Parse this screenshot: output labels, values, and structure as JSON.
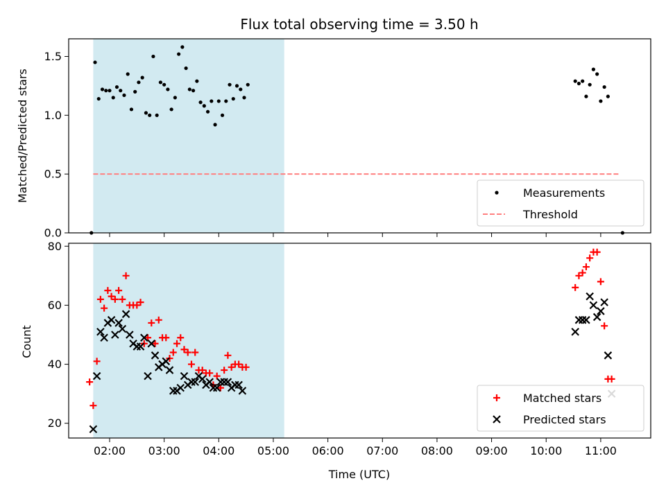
{
  "chart_data": [
    {
      "type": "scatter",
      "title": "Flux total observing time = 3.50 h",
      "ylabel": "Matched/Predicted stars",
      "xlabel": "",
      "x_axis": "time (UTC)",
      "xlim": [
        "01:15",
        "11:55"
      ],
      "ylim": [
        0,
        1.65
      ],
      "yticks": [
        0.0,
        0.5,
        1.0,
        1.5
      ],
      "ytick_labels": [
        "0.0",
        "0.5",
        "1.0",
        "1.5"
      ],
      "shaded_region": {
        "x": [
          "01:42",
          "05:12"
        ],
        "color": "#add8e6"
      },
      "threshold": {
        "name": "Threshold",
        "y": 0.5,
        "x": [
          "01:42",
          "11:20"
        ],
        "color": "#ff7f7f"
      },
      "legend": {
        "location": "lower right",
        "entries": [
          "Measurements",
          "Threshold"
        ]
      },
      "series": [
        {
          "name": "Measurements",
          "marker": "dot",
          "color": "#000000",
          "points": [
            [
              "01:40",
              0.0
            ],
            [
              "01:44",
              1.45
            ],
            [
              "01:48",
              1.14
            ],
            [
              "01:52",
              1.22
            ],
            [
              "01:56",
              1.21
            ],
            [
              "02:00",
              1.21
            ],
            [
              "02:04",
              1.15
            ],
            [
              "02:08",
              1.24
            ],
            [
              "02:12",
              1.21
            ],
            [
              "02:16",
              1.17
            ],
            [
              "02:20",
              1.35
            ],
            [
              "02:24",
              1.05
            ],
            [
              "02:28",
              1.2
            ],
            [
              "02:32",
              1.28
            ],
            [
              "02:36",
              1.32
            ],
            [
              "02:40",
              1.02
            ],
            [
              "02:44",
              1.0
            ],
            [
              "02:48",
              1.5
            ],
            [
              "02:52",
              1.0
            ],
            [
              "02:56",
              1.28
            ],
            [
              "03:00",
              1.26
            ],
            [
              "03:04",
              1.22
            ],
            [
              "03:08",
              1.05
            ],
            [
              "03:12",
              1.15
            ],
            [
              "03:16",
              1.52
            ],
            [
              "03:20",
              1.58
            ],
            [
              "03:24",
              1.4
            ],
            [
              "03:28",
              1.22
            ],
            [
              "03:32",
              1.21
            ],
            [
              "03:36",
              1.29
            ],
            [
              "03:40",
              1.11
            ],
            [
              "03:44",
              1.08
            ],
            [
              "03:48",
              1.03
            ],
            [
              "03:52",
              1.12
            ],
            [
              "03:56",
              0.92
            ],
            [
              "04:00",
              1.12
            ],
            [
              "04:04",
              1.0
            ],
            [
              "04:08",
              1.12
            ],
            [
              "04:12",
              1.26
            ],
            [
              "04:16",
              1.14
            ],
            [
              "04:20",
              1.25
            ],
            [
              "04:24",
              1.22
            ],
            [
              "04:28",
              1.15
            ],
            [
              "04:32",
              1.26
            ],
            [
              "10:32",
              1.29
            ],
            [
              "10:36",
              1.27
            ],
            [
              "10:40",
              1.29
            ],
            [
              "10:44",
              1.16
            ],
            [
              "10:48",
              1.26
            ],
            [
              "10:52",
              1.39
            ],
            [
              "10:56",
              1.35
            ],
            [
              "11:00",
              1.12
            ],
            [
              "11:04",
              1.24
            ],
            [
              "11:08",
              1.16
            ],
            [
              "11:24",
              0.0
            ]
          ]
        }
      ]
    },
    {
      "type": "scatter",
      "title": "",
      "ylabel": "Count",
      "xlabel": "Time (UTC)",
      "xlim": [
        "01:15",
        "11:55"
      ],
      "xticks": [
        "02:00",
        "03:00",
        "04:00",
        "05:00",
        "06:00",
        "07:00",
        "08:00",
        "09:00",
        "10:00",
        "11:00"
      ],
      "ylim": [
        15,
        81
      ],
      "yticks": [
        20,
        40,
        60,
        80
      ],
      "ytick_labels": [
        "20",
        "40",
        "60",
        "80"
      ],
      "shaded_region": {
        "x": [
          "01:42",
          "05:12"
        ],
        "color": "#add8e6"
      },
      "legend": {
        "location": "lower right",
        "entries": [
          "Matched stars",
          "Predicted stars"
        ]
      },
      "series": [
        {
          "name": "Matched stars",
          "marker": "plus",
          "color": "#ff0000",
          "points": [
            [
              "01:38",
              34
            ],
            [
              "01:42",
              26
            ],
            [
              "01:46",
              41
            ],
            [
              "01:50",
              62
            ],
            [
              "01:54",
              59
            ],
            [
              "01:58",
              65
            ],
            [
              "02:02",
              63
            ],
            [
              "02:06",
              62
            ],
            [
              "02:10",
              65
            ],
            [
              "02:14",
              62
            ],
            [
              "02:18",
              70
            ],
            [
              "02:22",
              60
            ],
            [
              "02:26",
              60
            ],
            [
              "02:30",
              60
            ],
            [
              "02:34",
              61
            ],
            [
              "02:38",
              47
            ],
            [
              "02:42",
              49
            ],
            [
              "02:46",
              54
            ],
            [
              "02:50",
              47
            ],
            [
              "02:54",
              55
            ],
            [
              "02:58",
              49
            ],
            [
              "03:02",
              49
            ],
            [
              "03:06",
              42
            ],
            [
              "03:10",
              44
            ],
            [
              "03:14",
              47
            ],
            [
              "03:18",
              49
            ],
            [
              "03:22",
              45
            ],
            [
              "03:26",
              44
            ],
            [
              "03:30",
              40
            ],
            [
              "03:34",
              44
            ],
            [
              "03:38",
              38
            ],
            [
              "03:42",
              38
            ],
            [
              "03:46",
              37
            ],
            [
              "03:50",
              37
            ],
            [
              "03:54",
              33
            ],
            [
              "03:58",
              36
            ],
            [
              "04:02",
              32
            ],
            [
              "04:06",
              38
            ],
            [
              "04:10",
              43
            ],
            [
              "04:14",
              39
            ],
            [
              "04:18",
              40
            ],
            [
              "04:22",
              40
            ],
            [
              "04:26",
              39
            ],
            [
              "04:30",
              39
            ],
            [
              "10:32",
              66
            ],
            [
              "10:36",
              70
            ],
            [
              "10:40",
              71
            ],
            [
              "10:44",
              73
            ],
            [
              "10:48",
              76
            ],
            [
              "10:52",
              78
            ],
            [
              "10:56",
              78
            ],
            [
              "11:00",
              68
            ],
            [
              "11:04",
              53
            ],
            [
              "11:08",
              35
            ],
            [
              "11:12",
              35
            ]
          ]
        },
        {
          "name": "Predicted stars",
          "marker": "x",
          "color": "#000000",
          "points": [
            [
              "01:42",
              18
            ],
            [
              "01:46",
              36
            ],
            [
              "01:50",
              51
            ],
            [
              "01:54",
              49
            ],
            [
              "01:58",
              54
            ],
            [
              "02:02",
              55
            ],
            [
              "02:06",
              50
            ],
            [
              "02:10",
              54
            ],
            [
              "02:14",
              52
            ],
            [
              "02:18",
              57
            ],
            [
              "02:22",
              50
            ],
            [
              "02:26",
              47
            ],
            [
              "02:30",
              46
            ],
            [
              "02:34",
              46
            ],
            [
              "02:38",
              49
            ],
            [
              "02:42",
              36
            ],
            [
              "02:46",
              47
            ],
            [
              "02:50",
              43
            ],
            [
              "02:54",
              39
            ],
            [
              "02:58",
              40
            ],
            [
              "03:02",
              41
            ],
            [
              "03:06",
              38
            ],
            [
              "03:10",
              31
            ],
            [
              "03:14",
              31
            ],
            [
              "03:18",
              32
            ],
            [
              "03:22",
              36
            ],
            [
              "03:26",
              33
            ],
            [
              "03:30",
              34
            ],
            [
              "03:34",
              34
            ],
            [
              "03:38",
              36
            ],
            [
              "03:42",
              35
            ],
            [
              "03:46",
              33
            ],
            [
              "03:50",
              34
            ],
            [
              "03:54",
              32
            ],
            [
              "03:58",
              32
            ],
            [
              "04:02",
              34
            ],
            [
              "04:06",
              34
            ],
            [
              "04:10",
              34
            ],
            [
              "04:14",
              32
            ],
            [
              "04:18",
              33
            ],
            [
              "04:22",
              33
            ],
            [
              "04:26",
              31
            ],
            [
              "10:32",
              51
            ],
            [
              "10:36",
              55
            ],
            [
              "10:40",
              55
            ],
            [
              "10:44",
              55
            ],
            [
              "10:48",
              63
            ],
            [
              "10:52",
              60
            ],
            [
              "10:56",
              56
            ],
            [
              "11:00",
              58
            ],
            [
              "11:04",
              61
            ],
            [
              "11:08",
              43
            ],
            [
              "11:12",
              30
            ]
          ]
        }
      ]
    }
  ]
}
